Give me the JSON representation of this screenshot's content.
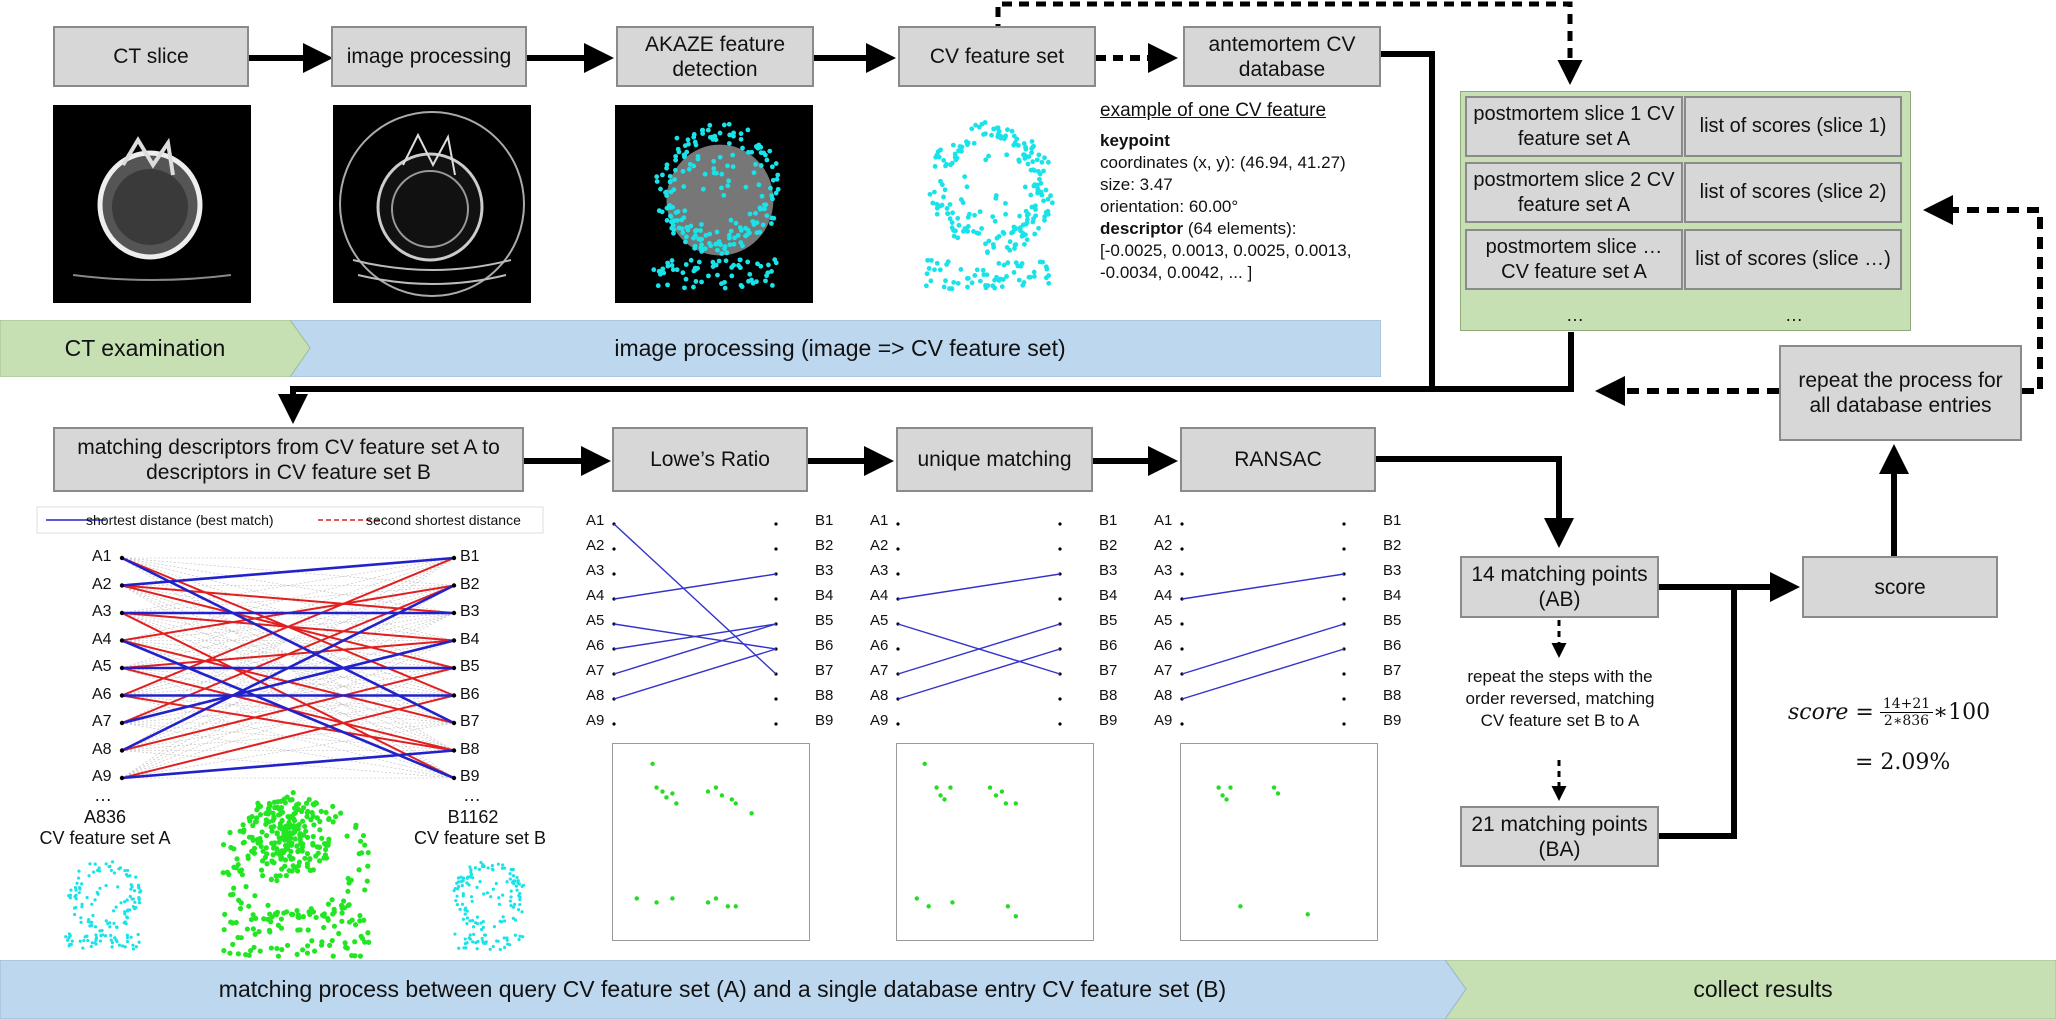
{
  "pipeline": {
    "ct_slice": "CT slice",
    "image_processing": "image processing",
    "akaze": "AKAZE feature detection",
    "cv_feature_set": "CV feature set",
    "antemortem_db": "antemortem CV database"
  },
  "example": {
    "title": "example of one CV feature",
    "keypoint_label": "keypoint",
    "coords": "coordinates (x, y): (46.94, 41.27)",
    "size": "size: 3.47",
    "orientation": "orientation: 60.00°",
    "descriptor_label": "descriptor",
    "descriptor_count": " (64 elements):",
    "descriptor_values": "[-0.0025, 0.0013, 0.0025, 0.0013, -0.0034, 0.0042, ... ]"
  },
  "database_panel": {
    "rows": [
      {
        "slice": "postmortem slice 1 CV feature set A",
        "scores": "list of scores (slice 1)"
      },
      {
        "slice": "postmortem slice 2 CV feature set A",
        "scores": "list of scores (slice 2)"
      },
      {
        "slice": "postmortem slice … CV feature set A",
        "scores": "list of scores (slice …)"
      }
    ],
    "ellipsis_left": "…",
    "ellipsis_right": "…"
  },
  "banners": {
    "ct_exam": "CT examination",
    "image_proc": "image processing (image => CV feature set)",
    "matching": "matching process between query CV feature set (A) and a single database entry CV feature set (B)",
    "collect": "collect results"
  },
  "matching": {
    "descriptors": "matching descriptors from CV feature set A to descriptors in CV feature set B",
    "lowe": "Lowe’s Ratio",
    "unique": "unique matching",
    "ransac": "RANSAC",
    "legend_best": "shortest distance (best match)",
    "legend_second": "second shortest distance",
    "a_labels": [
      "A1",
      "A2",
      "A3",
      "A4",
      "A5",
      "A6",
      "A7",
      "A8",
      "A9"
    ],
    "b_labels": [
      "B1",
      "B2",
      "B3",
      "B4",
      "B5",
      "B6",
      "B7",
      "B8",
      "B9"
    ],
    "ellipsis": "…",
    "set_a_count": "A836",
    "set_a_name": "CV feature set A",
    "set_b_count": "B1162",
    "set_b_name": "CV feature set B"
  },
  "results": {
    "ab_points": "14 matching points (AB)",
    "ba_points": "21 matching points (BA)",
    "repeat_reverse": "repeat the steps with the order reversed, matching CV feature set B to A",
    "score": "score",
    "repeat_all": "repeat the process for all database entries",
    "formula_lhs": "score =",
    "formula_num": "14+21",
    "formula_den": "2∗836",
    "formula_mult": "∗100",
    "formula_result": "= 2.09%"
  },
  "colors": {
    "green_panel": "#c6e0b4",
    "blue_banner": "#bdd7ee",
    "box_gray": "#d7d7d7",
    "cyan": "#19e3e8",
    "green": "#22e622",
    "match_blue": "#2222cc",
    "match_red": "#e02020"
  }
}
